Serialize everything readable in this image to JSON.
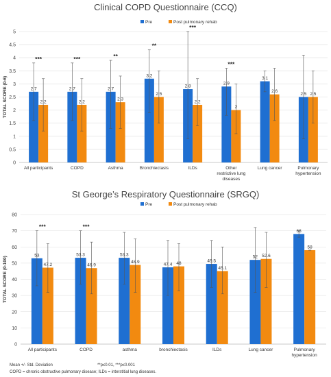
{
  "chart_data": [
    {
      "type": "bar",
      "title": "Clinical COPD Questionnaire (CCQ)",
      "ylabel": "TOTAL SCORE (0-6)",
      "xlabel": "",
      "ylim": [
        0,
        5
      ],
      "yticks": [
        0,
        0.5,
        1,
        1.5,
        2,
        2.5,
        3,
        3.5,
        4,
        4.5,
        5
      ],
      "grid": true,
      "legend": "top-right",
      "categories": [
        "All participants",
        "COPD",
        "Asthma",
        "Bronchiectasis",
        "ILDs",
        "Other restrictive lung diseases",
        "Lung cancer",
        "Pulmonary hypertension"
      ],
      "series": [
        {
          "name": "Pre",
          "color": "#1f6fd1",
          "values": [
            2.7,
            2.7,
            2.7,
            3.2,
            2.8,
            2.9,
            3.1,
            2.5
          ],
          "err_low": [
            1.6,
            1.6,
            1.3,
            1.9,
            0.9,
            1.8,
            2.7,
            0.9
          ],
          "err_high": [
            3.8,
            3.8,
            3.9,
            4.3,
            5.0,
            3.6,
            3.5,
            4.1
          ]
        },
        {
          "name": "Post pulmonary rehab",
          "color": "#f28a10",
          "values": [
            2.2,
            2.2,
            2.3,
            2.5,
            2.2,
            2.0,
            2.6,
            2.5
          ],
          "err_low": [
            1.2,
            1.2,
            1.3,
            1.5,
            1.4,
            1.1,
            1.6,
            1.5
          ],
          "err_high": [
            3.2,
            3.2,
            3.3,
            3.5,
            3.2,
            3.0,
            3.6,
            3.5
          ]
        }
      ],
      "value_labels": {
        "pre": [
          "2.7",
          "2.7",
          "2.7",
          "3.2",
          "2.8",
          "2.9",
          "3.1",
          "2.5"
        ],
        "post": [
          "2.2",
          "2.2",
          "2.3",
          "2.5",
          "2.2",
          "2",
          "2.6",
          "2.5"
        ]
      },
      "significance": [
        "***",
        "***",
        "**",
        "**",
        "***",
        "***",
        "",
        ""
      ]
    },
    {
      "type": "bar",
      "title": "St George’s Respiratory Questionnaire (SRGQ)",
      "ylabel": "TOTAL SCORE (0-100)",
      "xlabel": "",
      "ylim": [
        0,
        80
      ],
      "yticks": [
        0,
        10,
        20,
        30,
        40,
        50,
        60,
        70,
        80
      ],
      "grid": true,
      "legend": "top-right",
      "categories": [
        "All participants",
        "COPD",
        "asthma",
        "bronchiectasis",
        "ILDs",
        "Lung cancer",
        "Pulmonary hypertension"
      ],
      "series": [
        {
          "name": "Pre",
          "color": "#1f6fd1",
          "values": [
            53,
            53.3,
            53.3,
            47.4,
            49.5,
            52,
            68
          ],
          "err_low": [
            36,
            37,
            37,
            30,
            35,
            32,
            66
          ],
          "err_high": [
            70,
            70,
            69,
            64,
            64,
            72,
            70
          ]
        },
        {
          "name": "Post pulmonary rehab",
          "color": "#f28a10",
          "values": [
            47.2,
            46.9,
            48.9,
            48,
            45.1,
            52.6,
            58
          ],
          "err_low": [
            32,
            31,
            32,
            33,
            31,
            35,
            58
          ],
          "err_high": [
            62,
            63,
            65,
            62,
            60,
            69,
            58
          ]
        }
      ],
      "value_labels": {
        "pre": [
          "53",
          "53.3",
          "53.3",
          "47.4",
          "49.5",
          "52",
          "68"
        ],
        "post": [
          "47.2",
          "46.9",
          "48.9",
          "48",
          "45.1",
          "52.6",
          "58"
        ]
      },
      "significance": [
        "***",
        "***",
        "",
        "",
        "",
        "",
        ""
      ]
    }
  ],
  "footnotes": {
    "mean_sd": "Mean +/- Std. Deviation",
    "significance": "**p≤0.01,  ***p≤0.001",
    "abbreviations": "COPD = chronic obstructive pulmonary disease; ILDs = interstitial lung diseases."
  }
}
